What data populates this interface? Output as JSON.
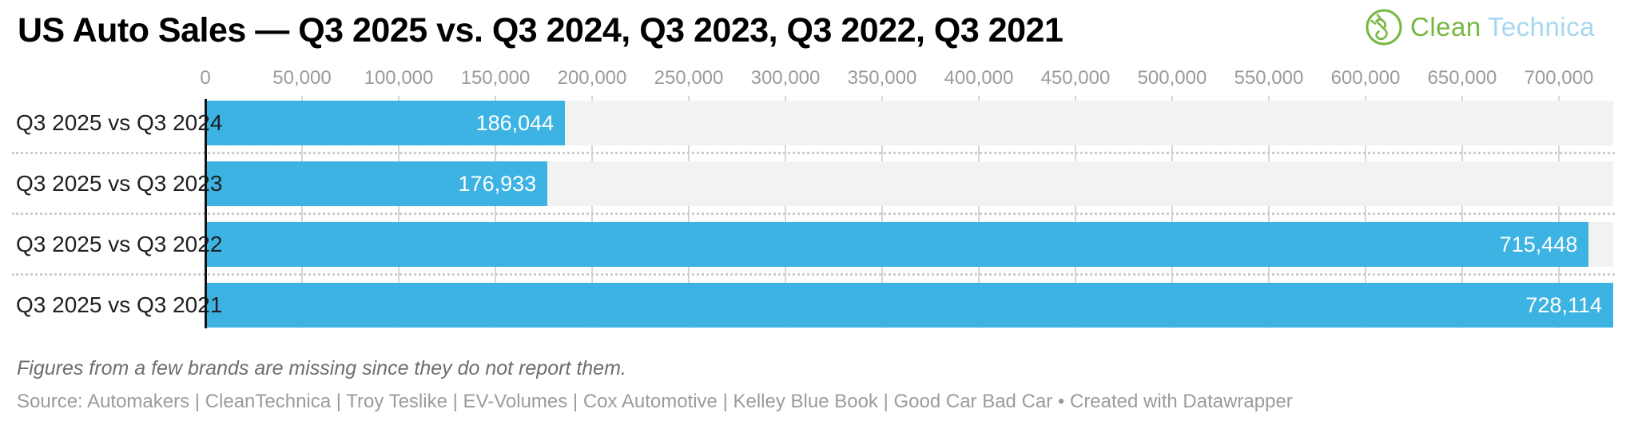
{
  "header": {
    "title": "US Auto Sales — Q3 2025 vs. Q3 2024, Q3 2023, Q3 2022, Q3 2021",
    "logo": {
      "text_green": "Clean",
      "text_blue": "Technica",
      "green_color": "#76b843",
      "blue_color": "#a7d6f0"
    }
  },
  "chart_data": {
    "type": "bar",
    "orientation": "horizontal",
    "title": "US Auto Sales — Q3 2025 vs. Q3 2024, Q3 2023, Q3 2022, Q3 2021",
    "categories": [
      "Q3 2025 vs Q3 2024",
      "Q3 2025 vs Q3 2023",
      "Q3 2025 vs Q3 2022",
      "Q3 2025 vs Q3 2021"
    ],
    "values": [
      186044,
      176933,
      715448,
      728114
    ],
    "value_labels": [
      "186,044",
      "176,933",
      "715,448",
      "728,114"
    ],
    "x_ticks": [
      0,
      50000,
      100000,
      150000,
      200000,
      250000,
      300000,
      350000,
      400000,
      450000,
      500000,
      550000,
      600000,
      650000,
      700000
    ],
    "x_tick_labels": [
      "0",
      "50,000",
      "100,000",
      "150,000",
      "200,000",
      "250,000",
      "300,000",
      "350,000",
      "400,000",
      "450,000",
      "500,000",
      "550,000",
      "600,000",
      "650,000",
      "700,000"
    ],
    "xlim": [
      0,
      728114
    ],
    "xlabel": "",
    "ylabel": "",
    "grid": true,
    "legend": false,
    "colors": {
      "bar": "#3cb3e2",
      "band": "#f2f2f2",
      "grid": "#d6d6d6",
      "separator": "#cccccc",
      "axis": "#111111",
      "tick_text": "#9b9b9b",
      "label_text": "#1f1f1f",
      "value_text": "#ffffff"
    }
  },
  "footer": {
    "note": "Figures from a few brands are missing since they do not report them.",
    "source": "Source: Automakers | CleanTechnica | Troy Teslike | EV-Volumes | Cox Automotive | Kelley Blue Book | Good Car Bad Car • Created with Datawrapper"
  }
}
